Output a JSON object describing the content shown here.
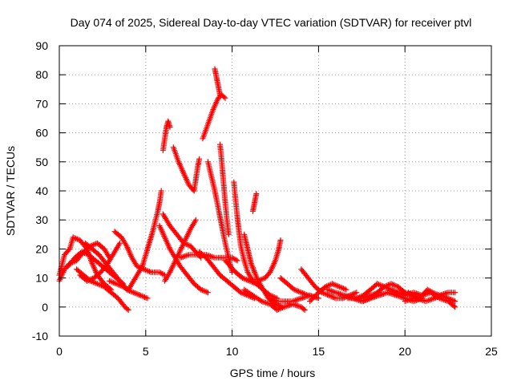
{
  "chart_data": {
    "type": "scatter",
    "title": "Day 074 of 2025, Sidereal Day-to-day VTEC variation (SDTVAR) for receiver ptvl",
    "xlabel": "GPS time / hours",
    "ylabel": "SDTVAR / TECUs",
    "xlim": [
      0,
      25
    ],
    "ylim": [
      -10,
      90
    ],
    "xticks": [
      0,
      5,
      10,
      15,
      20,
      25
    ],
    "yticks": [
      -10,
      0,
      10,
      20,
      30,
      40,
      50,
      60,
      70,
      80,
      90
    ],
    "grid": true,
    "marker": "+",
    "series_color": "#ff0000",
    "tracks": [
      [
        [
          0.0,
          11
        ],
        [
          0.3,
          18
        ],
        [
          0.6,
          20
        ],
        [
          0.8,
          24
        ],
        [
          1.2,
          23
        ],
        [
          1.6,
          20
        ],
        [
          1.9,
          15
        ],
        [
          2.2,
          11
        ],
        [
          2.6,
          8
        ],
        [
          3.0,
          6
        ]
      ],
      [
        [
          0.0,
          9
        ],
        [
          0.3,
          13
        ],
        [
          0.6,
          15
        ],
        [
          1.0,
          16
        ],
        [
          1.4,
          19
        ],
        [
          1.8,
          21
        ],
        [
          2.2,
          22
        ],
        [
          2.6,
          20
        ],
        [
          2.9,
          17
        ]
      ],
      [
        [
          0.5,
          14
        ],
        [
          0.9,
          17
        ],
        [
          1.3,
          19
        ],
        [
          1.7,
          18
        ],
        [
          2.1,
          16
        ],
        [
          2.5,
          14
        ],
        [
          2.9,
          12
        ],
        [
          3.3,
          10
        ],
        [
          3.7,
          8
        ]
      ],
      [
        [
          1.0,
          13
        ],
        [
          1.4,
          11
        ],
        [
          1.8,
          9
        ],
        [
          2.2,
          8
        ],
        [
          2.6,
          7
        ],
        [
          3.0,
          5
        ],
        [
          3.4,
          3
        ],
        [
          3.8,
          0
        ],
        [
          4.0,
          -1
        ]
      ],
      [
        [
          1.5,
          22
        ],
        [
          1.9,
          20
        ],
        [
          2.3,
          18
        ],
        [
          2.7,
          15
        ],
        [
          3.1,
          12
        ],
        [
          3.5,
          9
        ],
        [
          3.9,
          6
        ],
        [
          4.3,
          5
        ],
        [
          4.7,
          4
        ],
        [
          5.1,
          3
        ]
      ],
      [
        [
          1.2,
          11
        ],
        [
          1.6,
          9
        ],
        [
          2.0,
          10
        ],
        [
          2.4,
          12
        ],
        [
          2.8,
          15
        ],
        [
          3.2,
          19
        ],
        [
          3.5,
          22
        ]
      ],
      [
        [
          3.2,
          26
        ],
        [
          3.6,
          24
        ],
        [
          3.9,
          21
        ],
        [
          4.2,
          17
        ],
        [
          4.5,
          14
        ],
        [
          4.9,
          13
        ],
        [
          5.3,
          12
        ],
        [
          5.8,
          12
        ],
        [
          6.1,
          11
        ]
      ],
      [
        [
          2.9,
          9
        ],
        [
          3.3,
          8
        ],
        [
          3.7,
          7
        ],
        [
          4.0,
          6
        ],
        [
          4.2,
          8
        ],
        [
          4.4,
          10
        ],
        [
          4.8,
          14
        ],
        [
          5.1,
          20
        ],
        [
          5.4,
          26
        ],
        [
          5.7,
          33
        ],
        [
          5.8,
          36
        ],
        [
          5.9,
          40
        ]
      ],
      [
        [
          5.8,
          28
        ],
        [
          6.1,
          24
        ],
        [
          6.4,
          20
        ],
        [
          6.7,
          17
        ],
        [
          7.0,
          14
        ],
        [
          7.4,
          11
        ],
        [
          7.8,
          8
        ],
        [
          8.2,
          6
        ],
        [
          8.6,
          5
        ]
      ],
      [
        [
          6.0,
          54
        ],
        [
          6.1,
          58
        ],
        [
          6.2,
          62
        ],
        [
          6.3,
          64
        ],
        [
          6.4,
          62
        ]
      ],
      [
        [
          6.0,
          32
        ],
        [
          6.4,
          28
        ],
        [
          6.8,
          25
        ],
        [
          7.2,
          22
        ],
        [
          7.6,
          21
        ],
        [
          7.9,
          19
        ],
        [
          8.2,
          17
        ]
      ],
      [
        [
          6.1,
          9
        ],
        [
          6.4,
          12
        ],
        [
          6.8,
          17
        ],
        [
          7.2,
          22
        ],
        [
          7.6,
          27
        ],
        [
          7.9,
          30
        ]
      ],
      [
        [
          6.6,
          55
        ],
        [
          6.9,
          50
        ],
        [
          7.2,
          46
        ],
        [
          7.5,
          42
        ],
        [
          7.8,
          40
        ],
        [
          7.9,
          44
        ],
        [
          8.0,
          48
        ],
        [
          8.1,
          51
        ]
      ],
      [
        [
          7.0,
          17
        ],
        [
          7.5,
          18
        ],
        [
          8.0,
          18
        ],
        [
          8.5,
          18
        ],
        [
          9.0,
          17
        ],
        [
          9.5,
          17
        ],
        [
          10.0,
          17
        ],
        [
          10.3,
          16
        ]
      ],
      [
        [
          8.3,
          58
        ],
        [
          8.6,
          63
        ],
        [
          8.9,
          68
        ],
        [
          9.2,
          72
        ],
        [
          9.4,
          73
        ],
        [
          9.6,
          72
        ]
      ],
      [
        [
          9.0,
          82
        ],
        [
          9.1,
          79
        ],
        [
          9.2,
          76
        ],
        [
          9.3,
          73
        ]
      ],
      [
        [
          8.1,
          19
        ],
        [
          8.5,
          17
        ],
        [
          8.9,
          14
        ],
        [
          9.3,
          11
        ],
        [
          9.7,
          9
        ],
        [
          10.1,
          7
        ],
        [
          10.5,
          5
        ],
        [
          10.9,
          4
        ],
        [
          11.3,
          3
        ]
      ],
      [
        [
          8.6,
          50
        ],
        [
          8.8,
          45
        ],
        [
          9.0,
          40
        ],
        [
          9.2,
          34
        ],
        [
          9.4,
          28
        ],
        [
          9.6,
          22
        ],
        [
          9.8,
          17
        ],
        [
          10.0,
          12
        ]
      ],
      [
        [
          9.3,
          56
        ],
        [
          9.4,
          50
        ],
        [
          9.5,
          43
        ],
        [
          9.6,
          36
        ],
        [
          9.7,
          30
        ],
        [
          9.8,
          25
        ]
      ],
      [
        [
          10.1,
          43
        ],
        [
          10.2,
          37
        ],
        [
          10.3,
          31
        ],
        [
          10.4,
          26
        ],
        [
          10.5,
          21
        ],
        [
          10.7,
          16
        ],
        [
          10.9,
          12
        ],
        [
          11.2,
          9
        ],
        [
          11.6,
          7
        ]
      ],
      [
        [
          9.6,
          16
        ],
        [
          9.9,
          14
        ],
        [
          10.2,
          12
        ],
        [
          10.6,
          10
        ],
        [
          11.0,
          9
        ],
        [
          11.4,
          8
        ],
        [
          11.8,
          6
        ],
        [
          12.2,
          4
        ],
        [
          12.6,
          3
        ]
      ],
      [
        [
          10.7,
          25
        ],
        [
          10.9,
          20
        ],
        [
          11.1,
          15
        ],
        [
          11.3,
          12
        ],
        [
          11.5,
          9
        ],
        [
          11.8,
          6
        ],
        [
          12.1,
          3
        ],
        [
          12.5,
          1
        ],
        [
          12.9,
          0
        ]
      ],
      [
        [
          11.2,
          33
        ],
        [
          11.3,
          36
        ],
        [
          11.4,
          39
        ]
      ],
      [
        [
          11.5,
          9
        ],
        [
          11.9,
          10
        ],
        [
          12.2,
          12
        ],
        [
          12.5,
          16
        ],
        [
          12.7,
          20
        ],
        [
          12.8,
          23
        ]
      ],
      [
        [
          10.7,
          6
        ],
        [
          11.2,
          4
        ],
        [
          11.7,
          2
        ],
        [
          12.2,
          1
        ],
        [
          12.6,
          -1
        ],
        [
          13.0,
          0
        ],
        [
          13.5,
          1
        ],
        [
          14.0,
          0
        ],
        [
          14.2,
          -1
        ]
      ],
      [
        [
          12.2,
          3
        ],
        [
          12.6,
          2
        ],
        [
          13.0,
          2
        ],
        [
          13.5,
          2
        ],
        [
          14.0,
          3
        ],
        [
          14.5,
          4
        ],
        [
          15.0,
          3
        ]
      ],
      [
        [
          12.8,
          10
        ],
        [
          13.2,
          8
        ],
        [
          13.6,
          6
        ],
        [
          14.0,
          5
        ],
        [
          14.4,
          4
        ]
      ],
      [
        [
          14.0,
          13
        ],
        [
          14.4,
          10
        ],
        [
          14.8,
          7
        ],
        [
          15.2,
          5
        ],
        [
          15.6,
          4
        ],
        [
          16.0,
          3
        ],
        [
          16.4,
          3
        ],
        [
          16.8,
          4
        ],
        [
          17.2,
          5
        ]
      ],
      [
        [
          14.5,
          2
        ],
        [
          15.0,
          5
        ],
        [
          15.4,
          7
        ],
        [
          15.8,
          8
        ],
        [
          16.2,
          7
        ],
        [
          16.6,
          6
        ]
      ],
      [
        [
          15.5,
          6
        ],
        [
          16.0,
          5
        ],
        [
          16.5,
          4
        ],
        [
          17.0,
          3
        ],
        [
          17.5,
          3
        ],
        [
          18.0,
          4
        ],
        [
          18.5,
          5
        ]
      ],
      [
        [
          16.7,
          3
        ],
        [
          17.2,
          3
        ],
        [
          17.6,
          4
        ],
        [
          18.0,
          6
        ],
        [
          18.4,
          8
        ],
        [
          18.8,
          7
        ],
        [
          19.2,
          6
        ],
        [
          19.6,
          5
        ],
        [
          20.0,
          4
        ]
      ],
      [
        [
          17.6,
          2
        ],
        [
          18.0,
          3
        ],
        [
          18.4,
          5
        ],
        [
          18.8,
          7
        ],
        [
          19.2,
          8
        ],
        [
          19.6,
          7
        ],
        [
          20.0,
          5
        ],
        [
          20.4,
          4
        ],
        [
          20.8,
          3
        ]
      ],
      [
        [
          17.0,
          3
        ],
        [
          17.5,
          2
        ],
        [
          18.0,
          3
        ],
        [
          18.5,
          4
        ],
        [
          19.0,
          5
        ],
        [
          19.5,
          4
        ],
        [
          20.0,
          3
        ],
        [
          20.5,
          2
        ],
        [
          21.0,
          3
        ]
      ],
      [
        [
          19.5,
          5
        ],
        [
          20.0,
          4
        ],
        [
          20.5,
          5
        ],
        [
          21.0,
          4
        ],
        [
          21.5,
          5
        ],
        [
          22.0,
          3
        ],
        [
          22.5,
          2
        ],
        [
          22.9,
          0
        ]
      ],
      [
        [
          20.0,
          2
        ],
        [
          20.5,
          3
        ],
        [
          21.0,
          4
        ],
        [
          21.3,
          6
        ],
        [
          21.6,
          5
        ],
        [
          22.0,
          4
        ],
        [
          22.5,
          5
        ],
        [
          22.9,
          5
        ]
      ],
      [
        [
          20.2,
          5
        ],
        [
          20.7,
          3
        ],
        [
          21.2,
          2
        ],
        [
          21.7,
          3
        ],
        [
          22.1,
          4
        ],
        [
          22.5,
          3
        ],
        [
          22.9,
          2
        ]
      ]
    ]
  }
}
